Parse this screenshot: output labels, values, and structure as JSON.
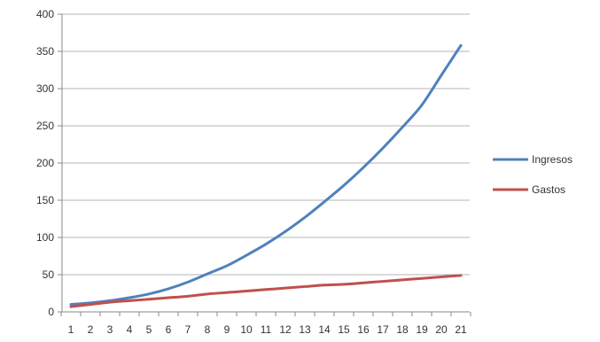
{
  "chart_data": {
    "type": "line",
    "title": "",
    "xlabel": "",
    "ylabel": "",
    "categories": [
      "1",
      "2",
      "3",
      "4",
      "5",
      "6",
      "7",
      "8",
      "9",
      "10",
      "11",
      "12",
      "13",
      "14",
      "15",
      "16",
      "17",
      "18",
      "19",
      "20",
      "21"
    ],
    "ylim": [
      0,
      400
    ],
    "yticks": [
      0,
      50,
      100,
      150,
      200,
      250,
      300,
      350,
      400
    ],
    "yticks_labels": [
      "0",
      "50",
      "100",
      "150",
      "200",
      "250",
      "300",
      "350",
      "400"
    ],
    "grid": true,
    "legend_position": "right",
    "series": [
      {
        "name": "Ingresos",
        "color": "#4f81bd",
        "values": [
          10,
          12,
          15,
          19,
          24,
          31,
          40,
          51,
          62,
          76,
          91,
          108,
          127,
          148,
          170,
          194,
          220,
          248,
          278,
          318,
          358
        ]
      },
      {
        "name": "Gastos",
        "color": "#c0504d",
        "values": [
          7,
          10,
          13,
          15,
          17,
          19,
          21,
          24,
          26,
          28,
          30,
          32,
          34,
          36,
          37,
          39,
          41,
          43,
          45,
          47,
          49
        ]
      }
    ]
  }
}
